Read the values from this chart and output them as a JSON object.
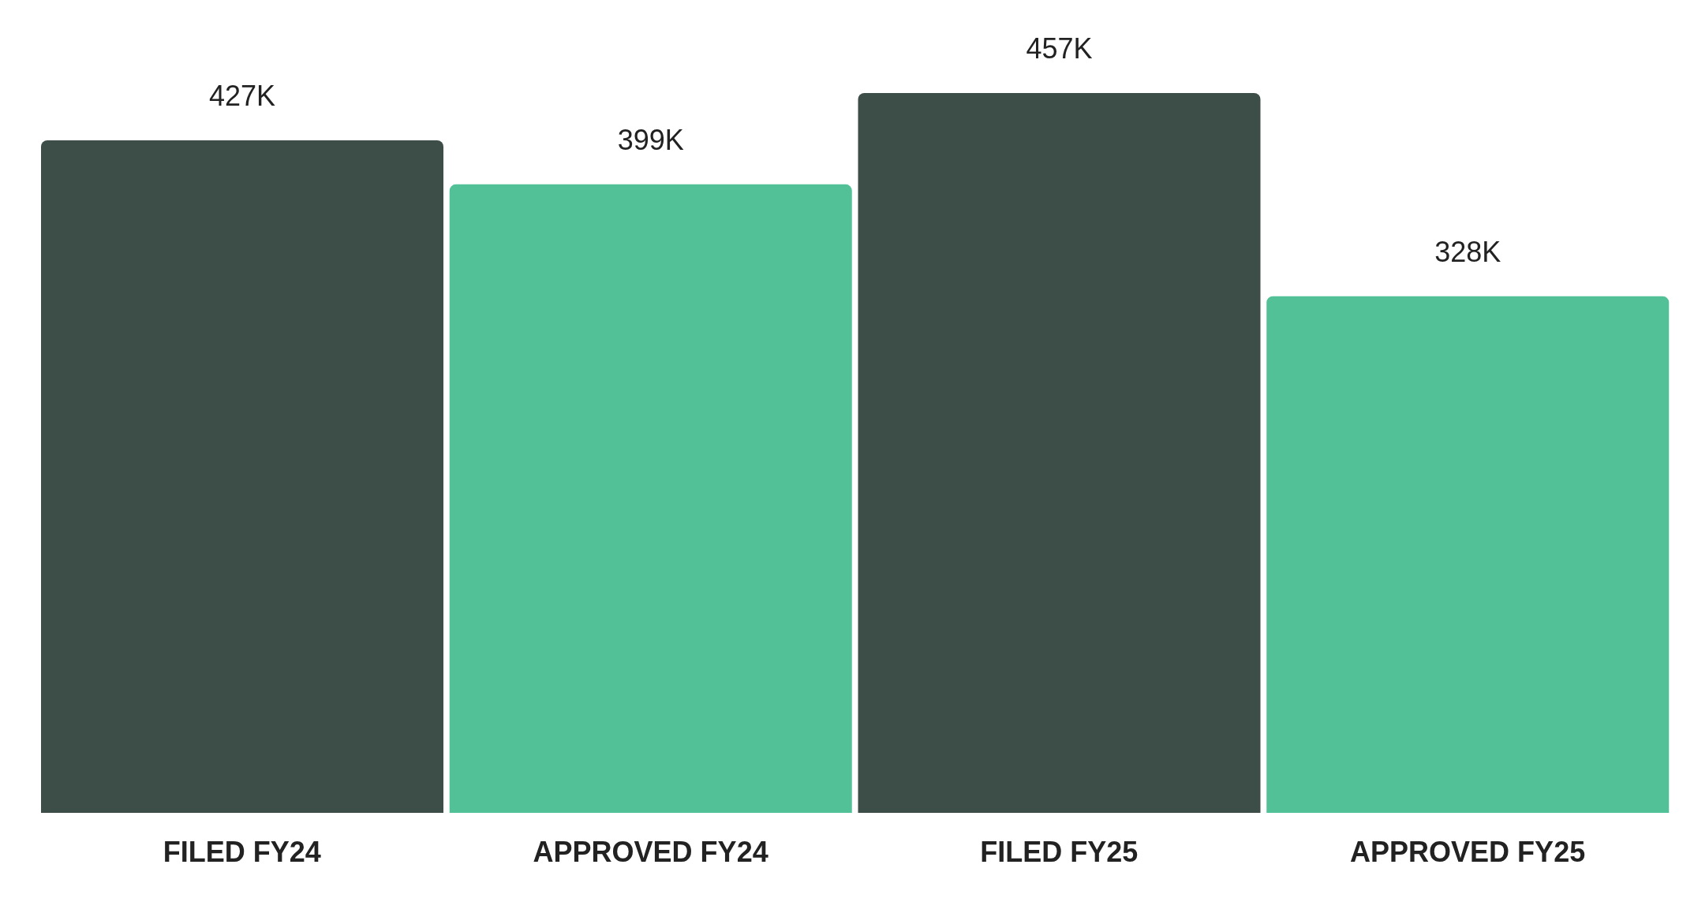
{
  "chart_data": {
    "type": "bar",
    "categories": [
      "FILED FY24",
      "APPROVED FY24",
      "FILED FY25",
      "APPROVED FY25"
    ],
    "values": [
      427,
      399,
      457,
      328
    ],
    "colors": [
      "#3d4e48",
      "#52c198",
      "#3d4e48",
      "#52c198"
    ],
    "value_labels": [
      "427K",
      "399K",
      "457K",
      "328K"
    ]
  }
}
